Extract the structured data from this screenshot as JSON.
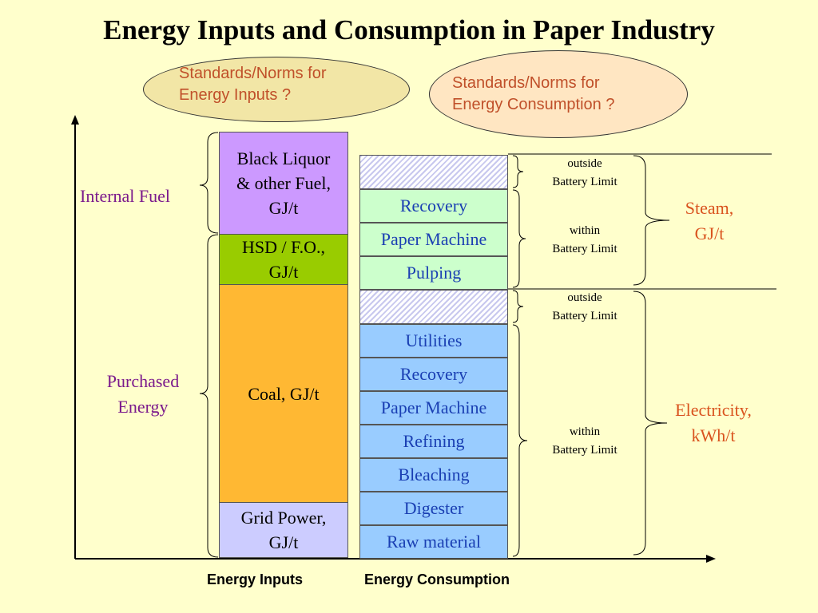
{
  "title": "Energy Inputs and Consumption in Paper Industry",
  "norms_inputs": "Standards/Norms for\nEnergy Inputs ?",
  "norms_consumption": "Standards/Norms for\nEnergy Consumption ?",
  "inputs": {
    "black_liquor": "Black Liquor\n& other Fuel,\nGJ/t",
    "hsd": "HSD / F.O.,\nGJ/t",
    "coal": "Coal, GJ/t",
    "grid_power": "Grid Power,\nGJ/t"
  },
  "left_labels": {
    "internal_fuel": "Internal Fuel",
    "purchased_energy": "Purchased\nEnergy"
  },
  "steam_items": [
    "Recovery",
    "Paper Machine",
    "Pulping"
  ],
  "electricity_items": [
    "Utilities",
    "Recovery",
    "Paper Machine",
    "Refining",
    "Bleaching",
    "Digester",
    "Raw material"
  ],
  "limits": {
    "outside_steam": "outside\nBattery Limit",
    "within_steam": "within\nBattery Limit",
    "outside_elec": "outside\nBattery Limit",
    "within_elec": "within\nBattery Limit"
  },
  "right_labels": {
    "steam": "Steam,\nGJ/t",
    "electricity": "Electricity,\nkWh/t"
  },
  "axis_labels": {
    "inputs": "Energy Inputs",
    "consumption": "Energy Consumption"
  },
  "colors": {
    "background": "#FFFFCC",
    "black_liquor": "#CC99FF",
    "hsd": "#99CC00",
    "coal": "#FFB833",
    "grid_power": "#CCCCFF",
    "steam_box": "#CCFFCC",
    "electricity_box": "#99CCFF",
    "norms_inputs_fill": "#F2E6A6",
    "norms_consumption_fill": "#FFE6C2",
    "left_label_text": "#7B1A8C",
    "norms_text": "#C0502A",
    "consumption_text": "#1A3FB3"
  }
}
